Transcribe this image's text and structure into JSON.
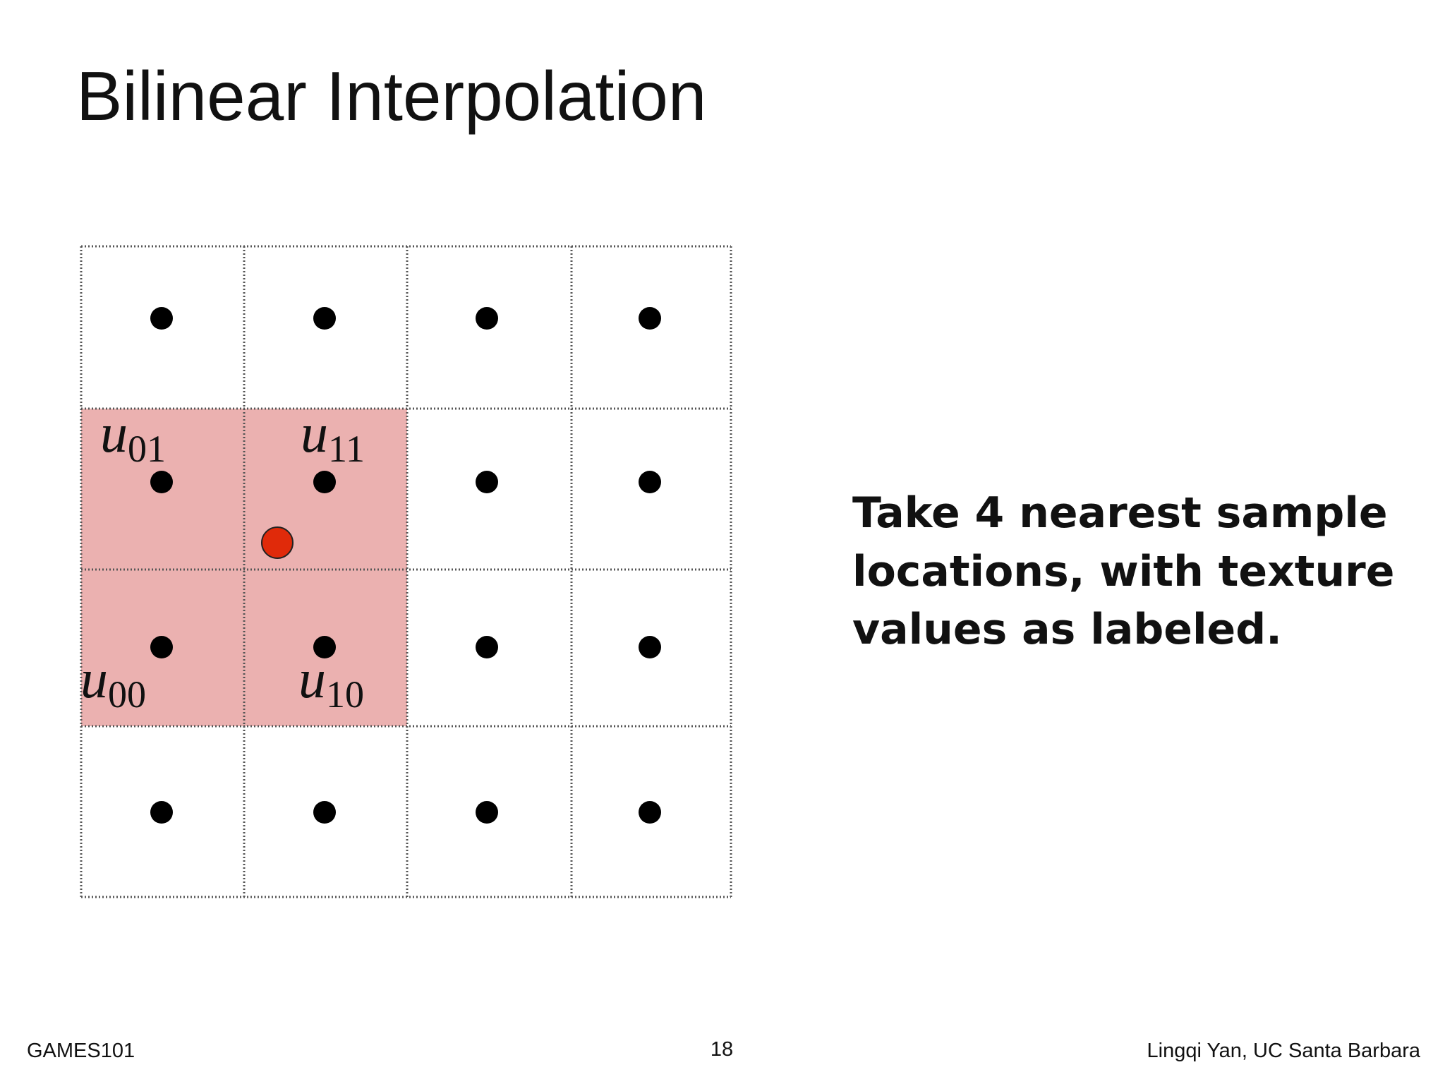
{
  "title": "Bilinear Interpolation",
  "diagram": {
    "labels": [
      {
        "symbol": "u",
        "subscript": "01"
      },
      {
        "symbol": "u",
        "subscript": "11"
      },
      {
        "symbol": "u",
        "subscript": "00"
      },
      {
        "symbol": "u",
        "subscript": "10"
      }
    ]
  },
  "body": {
    "lines": [
      "Take 4 nearest sample",
      "locations, with texture",
      "values as labeled."
    ]
  },
  "footer": {
    "left": "GAMES101",
    "page": "18",
    "right": "Lingqi Yan, UC Santa Barbara"
  }
}
